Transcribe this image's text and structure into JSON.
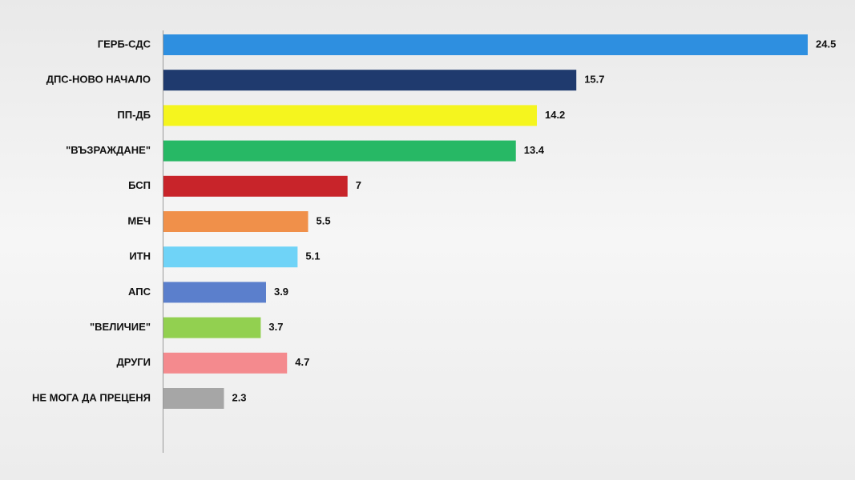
{
  "chart_data": {
    "type": "barh",
    "categories": [
      "ГЕРБ-СДС",
      "ДПС-НОВО НАЧАЛО",
      "ПП-ДБ",
      "\"ВЪЗРАЖДАНЕ\"",
      "БСП",
      "МЕЧ",
      "ИТН",
      "АПС",
      "\"ВЕЛИЧИЕ\"",
      "ДРУГИ",
      "НЕ МОГА ДА ПРЕЦЕНЯ"
    ],
    "values": [
      24.5,
      15.7,
      14.2,
      13.4,
      7,
      5.5,
      5.1,
      3.9,
      3.7,
      4.7,
      2.3
    ],
    "colors": [
      "#2e8fe0",
      "#1f3a6e",
      "#f5f51e",
      "#27b865",
      "#c8242a",
      "#f0904a",
      "#6fd3f7",
      "#5b7fcc",
      "#92d050",
      "#f48a8e",
      "#a6a6a6"
    ],
    "xlim": [
      0,
      24.5
    ]
  }
}
